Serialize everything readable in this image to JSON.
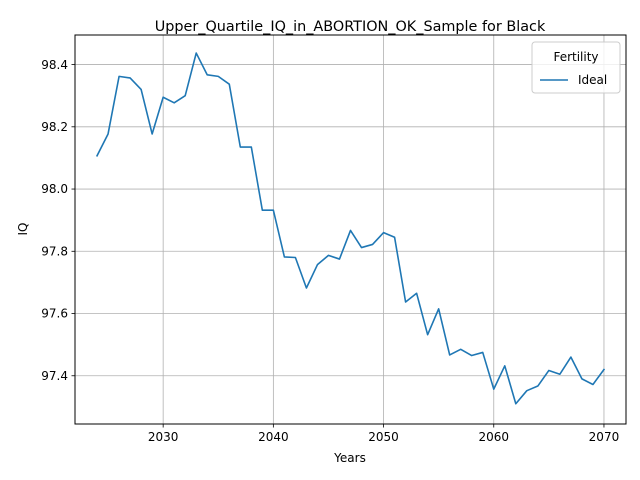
{
  "chart_data": {
    "type": "line",
    "title": "Upper_Quartile_IQ_in_ABORTION_OK_Sample for Black",
    "xlabel": "Years",
    "ylabel": "IQ",
    "xlim": [
      2022,
      2072
    ],
    "ylim": [
      97.245,
      98.495
    ],
    "xticks": [
      2030,
      2040,
      2050,
      2060,
      2070
    ],
    "yticks": [
      97.4,
      97.6,
      97.8,
      98.0,
      98.2,
      98.4
    ],
    "xtick_labels": [
      "2030",
      "2040",
      "2050",
      "2060",
      "2070"
    ],
    "ytick_labels": [
      "97.4",
      "97.6",
      "97.8",
      "98.0",
      "98.2",
      "98.4"
    ],
    "grid": true,
    "legend": {
      "title": "Fertility",
      "placement": "top-right"
    },
    "series": [
      {
        "name": "Ideal",
        "color": "#1f77b4",
        "x": [
          2024,
          2025,
          2026,
          2027,
          2028,
          2029,
          2030,
          2031,
          2032,
          2033,
          2034,
          2035,
          2036,
          2037,
          2038,
          2039,
          2040,
          2041,
          2042,
          2043,
          2044,
          2045,
          2046,
          2047,
          2048,
          2049,
          2050,
          2051,
          2052,
          2053,
          2054,
          2055,
          2056,
          2057,
          2058,
          2059,
          2060,
          2061,
          2062,
          2063,
          2064,
          2065,
          2066,
          2067,
          2068,
          2069,
          2070
        ],
        "y": [
          98.107,
          98.177,
          98.362,
          98.357,
          98.32,
          98.177,
          98.295,
          98.277,
          98.3,
          98.437,
          98.367,
          98.362,
          98.337,
          98.135,
          98.135,
          97.932,
          97.932,
          97.782,
          97.78,
          97.682,
          97.757,
          97.787,
          97.775,
          97.867,
          97.812,
          97.822,
          97.86,
          97.845,
          97.637,
          97.665,
          97.532,
          97.615,
          97.467,
          97.485,
          97.465,
          97.475,
          97.357,
          97.432,
          97.31,
          97.352,
          97.367,
          97.417,
          97.405,
          97.46,
          97.39,
          97.372,
          97.42
        ]
      }
    ]
  }
}
